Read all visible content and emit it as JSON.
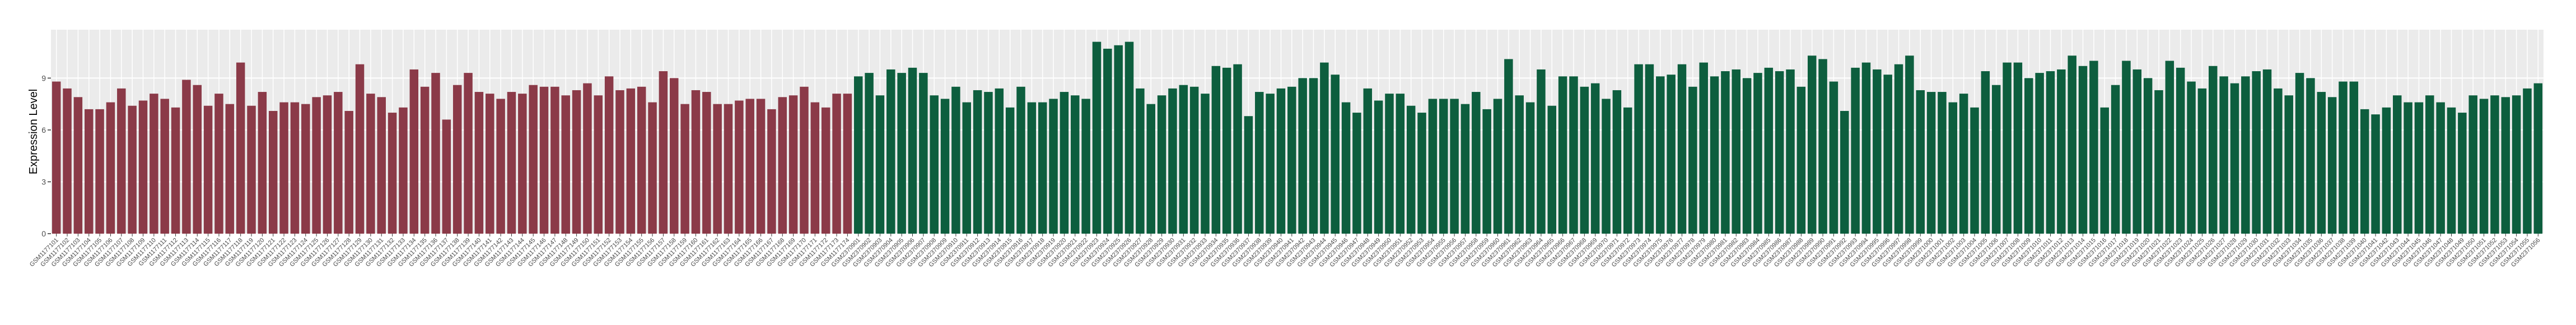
{
  "chart_data": {
    "type": "bar",
    "y_label": "Expression Level",
    "categories": [
      "GSM1177101",
      "GSM1177102",
      "GSM1177103",
      "GSM1177104",
      "GSM1177105",
      "GSM1177106",
      "GSM1177107",
      "GSM1177108",
      "GSM1177109",
      "GSM1177110",
      "GSM1177111",
      "GSM1177112",
      "GSM1177113",
      "GSM1177114",
      "GSM1177115",
      "GSM1177116",
      "GSM1177117",
      "GSM1177118",
      "GSM1177119",
      "GSM1177120",
      "GSM1177121",
      "GSM1177122",
      "GSM1177123",
      "GSM1177124",
      "GSM1177125",
      "GSM1177126",
      "GSM1177127",
      "GSM1177128",
      "GSM1177129",
      "GSM1177130",
      "GSM1177131",
      "GSM1177132",
      "GSM1177133",
      "GSM1177134",
      "GSM1177135",
      "GSM1177136",
      "GSM1177137",
      "GSM1177138",
      "GSM1177139",
      "GSM1177140",
      "GSM1177141",
      "GSM1177142",
      "GSM1177143",
      "GSM1177144",
      "GSM1177145",
      "GSM1177146",
      "GSM1177147",
      "GSM1177148",
      "GSM1177149",
      "GSM1177150",
      "GSM1177151",
      "GSM1177152",
      "GSM1177153",
      "GSM1177154",
      "GSM1177155",
      "GSM1177156",
      "GSM1177157",
      "GSM1177158",
      "GSM1177159",
      "GSM1177160",
      "GSM1177161",
      "GSM1177162",
      "GSM1177163",
      "GSM1177164",
      "GSM1177165",
      "GSM1177166",
      "GSM1177167",
      "GSM1177168",
      "GSM1177169",
      "GSM1177170",
      "GSM1177171",
      "GSM1177172",
      "GSM1177173",
      "GSM1177174",
      "GSM2370901",
      "GSM2370902",
      "GSM2370903",
      "GSM2370904",
      "GSM2370905",
      "GSM2370906",
      "GSM2370907",
      "GSM2370908",
      "GSM2370909",
      "GSM2370910",
      "GSM2370911",
      "GSM2370912",
      "GSM2370913",
      "GSM2370914",
      "GSM2370915",
      "GSM2370916",
      "GSM2370917",
      "GSM2370918",
      "GSM2370919",
      "GSM2370920",
      "GSM2370921",
      "GSM2370922",
      "GSM2370923",
      "GSM2370924",
      "GSM2370925",
      "GSM2370926",
      "GSM2370927",
      "GSM2370928",
      "GSM2370929",
      "GSM2370930",
      "GSM2370931",
      "GSM2370932",
      "GSM2370933",
      "GSM2370934",
      "GSM2370935",
      "GSM2370936",
      "GSM2370937",
      "GSM2370938",
      "GSM2370939",
      "GSM2370940",
      "GSM2370941",
      "GSM2370942",
      "GSM2370943",
      "GSM2370944",
      "GSM2370945",
      "GSM2370946",
      "GSM2370947",
      "GSM2370948",
      "GSM2370949",
      "GSM2370950",
      "GSM2370951",
      "GSM2370952",
      "GSM2370953",
      "GSM2370954",
      "GSM2370955",
      "GSM2370956",
      "GSM2370957",
      "GSM2370958",
      "GSM2370959",
      "GSM2370960",
      "GSM2370961",
      "GSM2370962",
      "GSM2370963",
      "GSM2370964",
      "GSM2370965",
      "GSM2370966",
      "GSM2370967",
      "GSM2370968",
      "GSM2370969",
      "GSM2370970",
      "GSM2370971",
      "GSM2370972",
      "GSM2370973",
      "GSM2370974",
      "GSM2370975",
      "GSM2370976",
      "GSM2370977",
      "GSM2370978",
      "GSM2370979",
      "GSM2370980",
      "GSM2370981",
      "GSM2370982",
      "GSM2370983",
      "GSM2370984",
      "GSM2370985",
      "GSM2370986",
      "GSM2370987",
      "GSM2370988",
      "GSM2370989",
      "GSM2370990",
      "GSM2370991",
      "GSM2370992",
      "GSM2370993",
      "GSM2370994",
      "GSM2370995",
      "GSM2370996",
      "GSM2370997",
      "GSM2370998",
      "GSM2370999",
      "GSM2371000",
      "GSM2371001",
      "GSM2371002",
      "GSM2371003",
      "GSM2371004",
      "GSM2371005",
      "GSM2371006",
      "GSM2371007",
      "GSM2371008",
      "GSM2371009",
      "GSM2371010",
      "GSM2371011",
      "GSM2371012",
      "GSM2371013",
      "GSM2371014",
      "GSM2371015",
      "GSM2371016",
      "GSM2371017",
      "GSM2371018",
      "GSM2371019",
      "GSM2371020",
      "GSM2371021",
      "GSM2371022",
      "GSM2371023",
      "GSM2371024",
      "GSM2371025",
      "GSM2371026",
      "GSM2371027",
      "GSM2371028",
      "GSM2371029",
      "GSM2371030",
      "GSM2371031",
      "GSM2371032",
      "GSM2371033",
      "GSM2371034",
      "GSM2371035",
      "GSM2371036",
      "GSM2371037",
      "GSM2371038",
      "GSM2371039",
      "GSM2371040",
      "GSM2371041",
      "GSM2371042",
      "GSM2371043",
      "GSM2371044",
      "GSM2371045",
      "GSM2371046",
      "GSM2371047",
      "GSM2371048",
      "GSM2371049",
      "GSM2371050",
      "GSM2371051",
      "GSM2371052",
      "GSM2371053",
      "GSM2371054",
      "GSM2371055",
      "GSM2371056"
    ],
    "series": [
      {
        "color": "#8b3a48",
        "values": [
          8.8,
          8.4,
          7.9,
          7.2,
          7.2,
          7.6,
          8.4,
          7.4,
          7.7,
          8.1,
          7.8,
          7.3,
          8.9,
          8.6,
          7.4,
          8.1,
          7.5,
          9.9,
          7.4,
          8.2,
          7.1,
          7.6,
          7.6,
          7.5,
          7.9,
          8.0,
          8.2,
          7.1,
          9.8,
          8.1,
          7.9,
          7.0,
          7.3,
          9.5,
          8.5,
          9.3,
          6.6,
          8.6,
          9.3,
          8.2,
          8.1,
          7.8,
          8.2,
          8.1,
          8.6,
          8.5,
          8.5,
          8.0,
          8.3,
          8.7,
          8.0,
          9.1,
          8.3,
          8.4,
          8.5,
          7.6,
          9.4,
          9.0,
          7.5,
          8.3,
          8.2,
          7.5,
          7.5,
          7.7,
          7.8,
          7.8,
          7.2,
          7.9,
          8.0,
          8.5,
          7.6,
          7.3,
          8.1,
          8.1,
          null,
          null,
          null,
          null,
          null,
          null,
          null,
          null,
          null,
          null,
          null,
          null,
          null,
          null,
          null,
          null,
          null,
          null,
          null,
          null,
          null,
          null,
          null,
          null,
          null,
          null,
          null,
          null,
          null,
          null,
          null,
          null,
          null,
          null,
          null,
          null,
          null,
          null,
          null,
          null,
          null,
          null,
          null,
          null,
          null,
          null,
          null,
          null,
          null,
          null,
          null,
          null,
          null,
          null,
          null,
          null,
          null,
          null,
          null,
          null,
          null,
          null,
          null,
          null,
          null,
          null,
          null,
          null,
          null,
          null,
          null,
          null,
          null,
          null,
          null,
          null,
          null,
          null,
          null,
          null,
          null,
          null,
          null,
          null,
          null,
          null,
          null,
          null,
          null,
          null,
          null,
          null,
          null,
          null,
          null,
          null,
          null,
          null,
          null,
          null,
          null,
          null,
          null,
          null,
          null,
          null,
          null,
          null,
          null,
          null,
          null,
          null,
          null,
          null,
          null,
          null,
          null,
          null,
          null,
          null,
          null,
          null,
          null,
          null,
          null,
          null,
          null,
          null,
          null,
          null,
          null,
          null,
          null,
          null,
          null,
          null,
          null,
          null,
          null,
          null,
          null,
          null,
          null,
          null,
          null,
          null,
          null,
          null,
          null,
          null,
          null,
          null,
          null,
          null,
          null,
          null
        ]
      },
      {
        "color": "#0d5e3e",
        "values": [
          null,
          null,
          null,
          null,
          null,
          null,
          null,
          null,
          null,
          null,
          null,
          null,
          null,
          null,
          null,
          null,
          null,
          null,
          null,
          null,
          null,
          null,
          null,
          null,
          null,
          null,
          null,
          null,
          null,
          null,
          null,
          null,
          null,
          null,
          null,
          null,
          null,
          null,
          null,
          null,
          null,
          null,
          null,
          null,
          null,
          null,
          null,
          null,
          null,
          null,
          null,
          null,
          null,
          null,
          null,
          null,
          null,
          null,
          null,
          null,
          null,
          null,
          null,
          null,
          null,
          null,
          null,
          null,
          null,
          null,
          null,
          null,
          null,
          null,
          9.1,
          9.3,
          8.0,
          9.5,
          9.3,
          9.6,
          9.3,
          8.0,
          7.8,
          8.5,
          7.6,
          8.3,
          8.2,
          8.4,
          7.3,
          8.5,
          7.6,
          7.6,
          7.8,
          8.2,
          8.0,
          7.8,
          11.1,
          10.7,
          10.9,
          11.1,
          8.4,
          7.5,
          8.0,
          8.4,
          8.6,
          8.5,
          8.1,
          9.7,
          9.6,
          9.8,
          6.8,
          8.2,
          8.1,
          8.4,
          8.5,
          9.0,
          9.0,
          9.9,
          9.2,
          7.6,
          7.0,
          8.4,
          7.7,
          8.1,
          8.1,
          7.4,
          7.0,
          7.8,
          7.8,
          7.8,
          7.5,
          8.2,
          7.2,
          7.8,
          10.1,
          8.0,
          7.6,
          9.5,
          7.4,
          9.1,
          9.1,
          8.5,
          8.7,
          7.8,
          8.3,
          7.3,
          9.8,
          9.8,
          9.1,
          9.2,
          9.8,
          8.5,
          9.9,
          9.1,
          9.4,
          9.5,
          9.0,
          9.3,
          9.6,
          9.4,
          9.5,
          8.5,
          10.3,
          10.1,
          8.8,
          7.1,
          9.6,
          9.9,
          9.5,
          9.2,
          9.8,
          10.3,
          8.3,
          8.2,
          8.2,
          7.6,
          8.1,
          7.3,
          9.4,
          8.6,
          9.9,
          9.9,
          9.0,
          9.3,
          9.4,
          9.5,
          10.3,
          9.7,
          10.0,
          7.3,
          8.6,
          10.0,
          9.5,
          9.0,
          8.3,
          10.0,
          9.6,
          8.8,
          8.4,
          9.7,
          9.1,
          8.7,
          9.1,
          9.4,
          9.5,
          8.4,
          8.0,
          9.3,
          9.0,
          8.2,
          7.9,
          8.8,
          8.8,
          7.2,
          6.9,
          7.3,
          8.0,
          7.6,
          7.6,
          8.0,
          7.6,
          7.3,
          7.0,
          8.0,
          7.8,
          8.0,
          7.9,
          8.0,
          8.4,
          8.7
        ]
      }
    ],
    "ylim": [
      0,
      11.8
    ],
    "yticks": [
      0,
      3,
      6,
      9
    ],
    "grid": true
  }
}
